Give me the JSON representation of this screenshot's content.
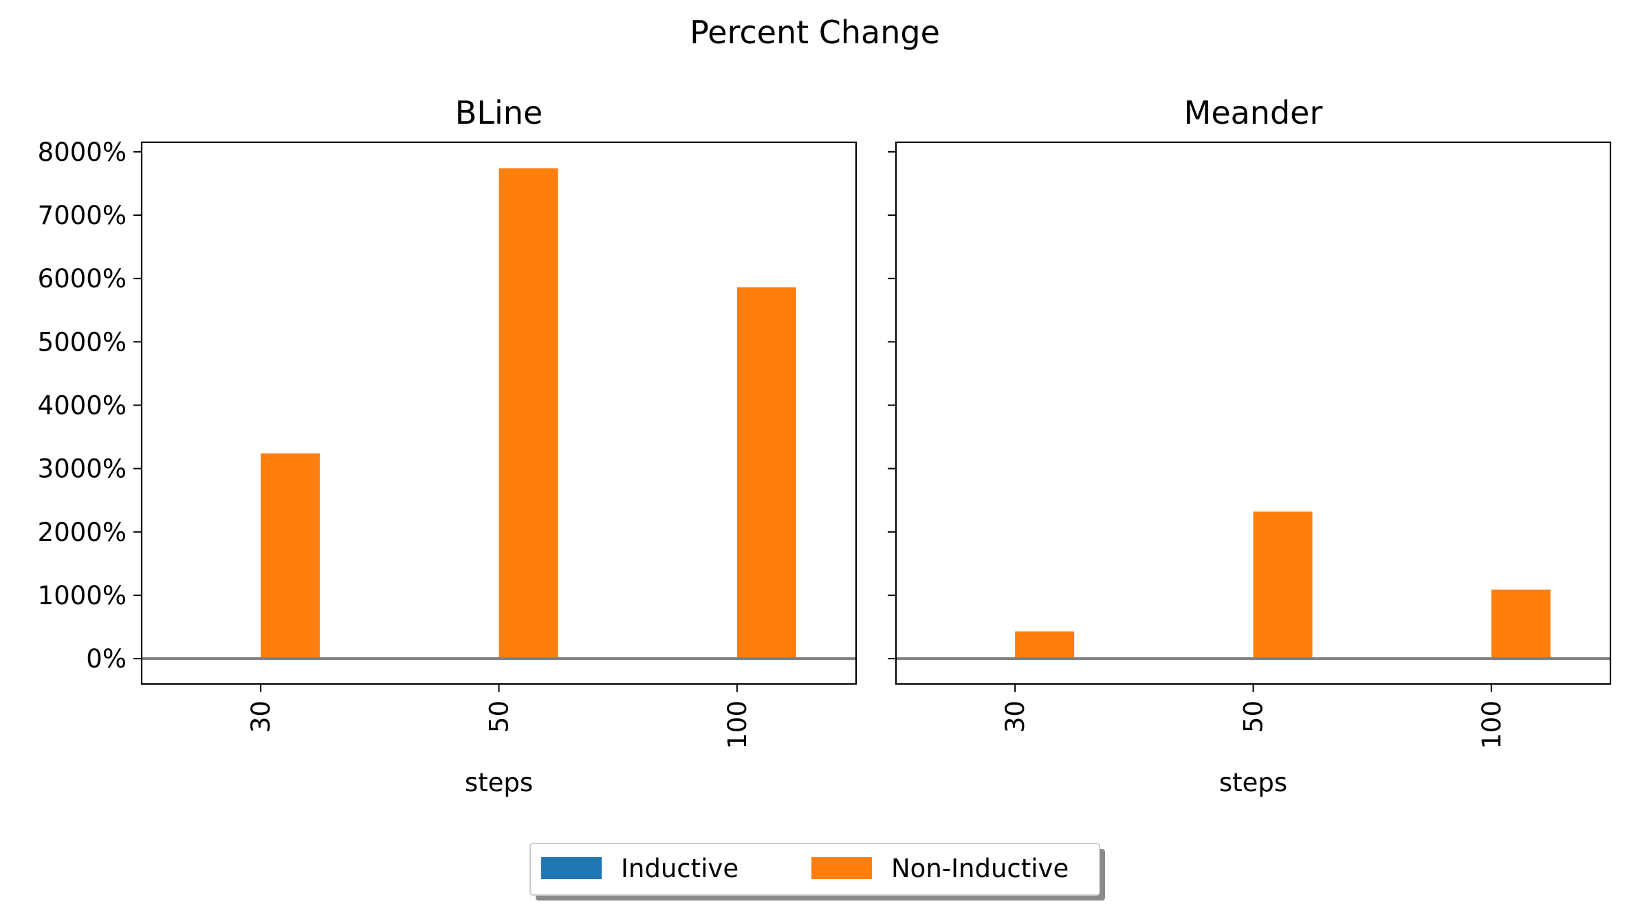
{
  "chart_data": {
    "suptitle": "Percent Change",
    "type": "bar",
    "shared_y": true,
    "ylim": [
      -400,
      8150
    ],
    "yticks": [
      0,
      1000,
      2000,
      3000,
      4000,
      5000,
      6000,
      7000,
      8000
    ],
    "ytick_labels": [
      "0%",
      "1000%",
      "2000%",
      "3000%",
      "4000%",
      "5000%",
      "6000%",
      "7000%",
      "8000%"
    ],
    "reference_line": {
      "y": 0,
      "color": "#808080"
    },
    "legend": {
      "placement": "bottom-center",
      "entries": [
        {
          "name": "Inductive",
          "color": "#1f77b4"
        },
        {
          "name": "Non-Inductive",
          "color": "#ff7f0e"
        }
      ]
    },
    "panels": [
      {
        "title": "BLine",
        "xlabel": "steps",
        "categories": [
          "30",
          "50",
          "100"
        ],
        "series": [
          {
            "name": "Inductive",
            "color": "#1f77b4",
            "values": [
              0,
              0,
              0
            ]
          },
          {
            "name": "Non-Inductive",
            "color": "#ff7f0e",
            "values": [
              3240,
              7740,
              5860
            ]
          }
        ]
      },
      {
        "title": "Meander",
        "xlabel": "steps",
        "categories": [
          "30",
          "50",
          "100"
        ],
        "series": [
          {
            "name": "Inductive",
            "color": "#1f77b4",
            "values": [
              0,
              0,
              0
            ]
          },
          {
            "name": "Non-Inductive",
            "color": "#ff7f0e",
            "values": [
              430,
              2320,
              1090
            ]
          }
        ]
      }
    ]
  }
}
